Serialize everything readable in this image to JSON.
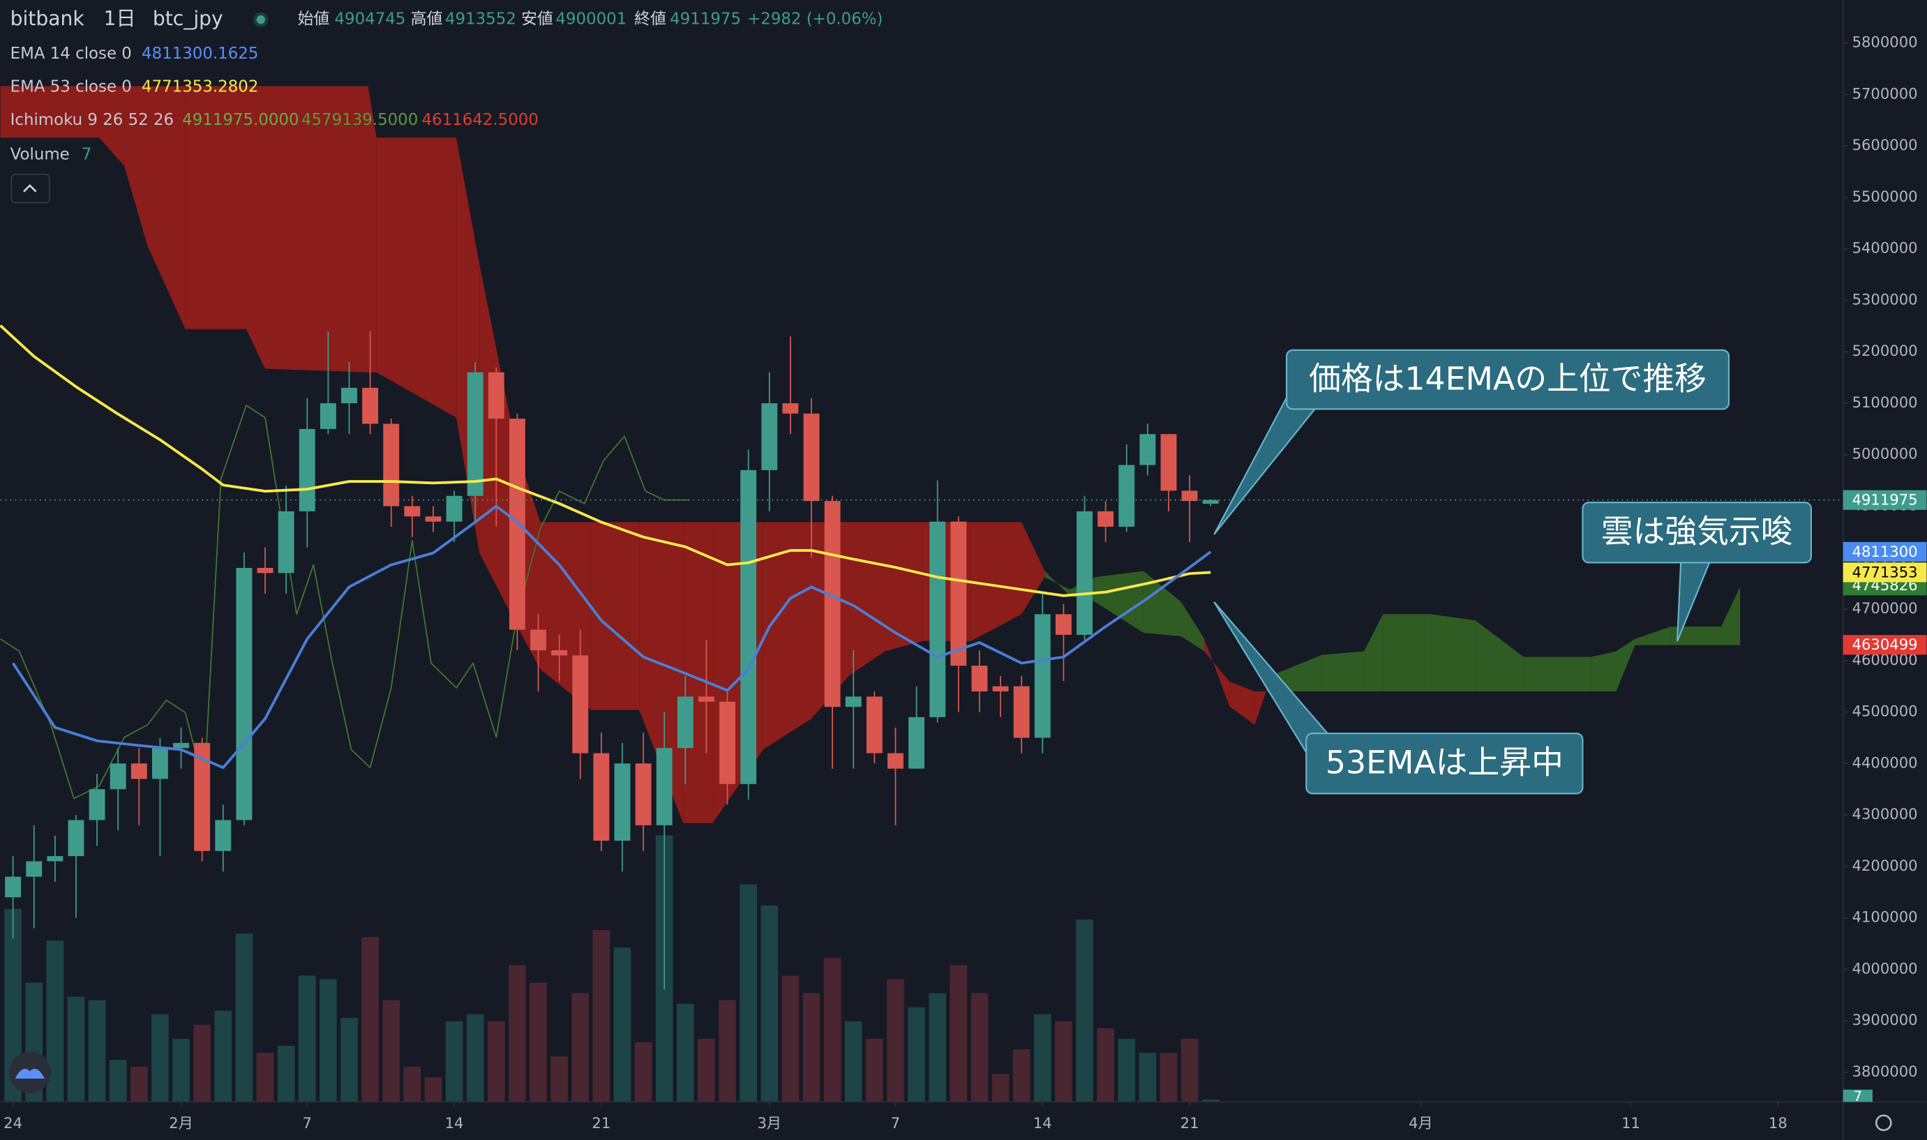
{
  "chart_data": {
    "type": "candlestick",
    "header": {
      "symbol": "bitbank",
      "interval": "1日",
      "pair": "btc_jpy",
      "ohlc": [
        {
          "label": "始値",
          "value": 4904745
        },
        {
          "label": "高値",
          "value": 4913552
        },
        {
          "label": "安値",
          "value": 4900001
        },
        {
          "label": "終値",
          "value": 4911975
        }
      ],
      "change": "+2982 (+0.06%)"
    },
    "legend": [
      {
        "label": "EMA 14 close 0",
        "values": [
          "4811300.1625"
        ],
        "colors": [
          "#5b8ff9"
        ]
      },
      {
        "label": "EMA 53 close 0",
        "values": [
          "4771353.2802"
        ],
        "colors": [
          "#f5e94a"
        ]
      },
      {
        "label": "Ichimoku 9 26 52 26",
        "values": [
          "4911975.0000",
          "4579139.5000",
          "4611642.5000"
        ],
        "colors": [
          "#6aaa4c",
          "#5c9a3c",
          "#e03c31"
        ]
      },
      {
        "label": "Volume",
        "values": [
          "7"
        ],
        "colors": [
          "#3f9c8c"
        ]
      }
    ],
    "xlim": [
      -0.6,
      87.1
    ],
    "xticks": [
      {
        "value": 0,
        "label": "24"
      },
      {
        "value": 8,
        "label": "2月"
      },
      {
        "value": 14,
        "label": "7"
      },
      {
        "value": 21,
        "label": "14"
      },
      {
        "value": 28,
        "label": "21"
      },
      {
        "value": 36,
        "label": "3月"
      },
      {
        "value": 42,
        "label": "7"
      },
      {
        "value": 49,
        "label": "14"
      },
      {
        "value": 56,
        "label": "21"
      },
      {
        "value": 67,
        "label": "4月"
      },
      {
        "value": 77,
        "label": "11"
      },
      {
        "value": 84,
        "label": "18"
      }
    ],
    "ylim": [
      3742400,
      5883500
    ],
    "yticks": [
      3800000,
      3900000,
      4000000,
      4100000,
      4200000,
      4300000,
      4400000,
      4500000,
      4600000,
      4700000,
      4800000,
      4900000,
      5000000,
      5100000,
      5200000,
      5300000,
      5400000,
      5500000,
      5600000,
      5700000,
      5800000
    ],
    "up_color": "#3f9c8c",
    "down_color": "#d9574f",
    "volume_up_color": "#1d4447",
    "volume_down_color": "#4a2630",
    "candles": {
      "x": [
        0,
        1,
        2,
        3,
        4,
        5,
        6,
        7,
        8,
        9,
        10,
        11,
        12,
        13,
        14,
        15,
        16,
        17,
        18,
        19,
        20,
        21,
        22,
        23,
        24,
        25,
        26,
        27,
        28,
        29,
        30,
        31,
        32,
        33,
        34,
        35,
        36,
        37,
        38,
        39,
        40,
        41,
        42,
        43,
        44,
        45,
        46,
        47,
        48,
        49,
        50,
        51,
        52,
        53,
        54,
        55,
        56,
        57
      ],
      "open": [
        4140000,
        4180000,
        4210000,
        4220000,
        4290000,
        4350000,
        4400000,
        4370000,
        4430000,
        4440000,
        4230000,
        4290000,
        4780000,
        4770000,
        4890000,
        5050000,
        5100000,
        5130000,
        5060000,
        4900000,
        4880000,
        4870000,
        4920000,
        5160000,
        5070000,
        4660000,
        4620000,
        4610000,
        4420000,
        4250000,
        4400000,
        4280000,
        4430000,
        4530000,
        4520000,
        4360000,
        4970000,
        5100000,
        5080000,
        4910000,
        4510000,
        4530000,
        4420000,
        4390000,
        4490000,
        4870000,
        4590000,
        4550000,
        4550000,
        4450000,
        4690000,
        4650000,
        4890000,
        4860000,
        4980000,
        5040000,
        4930000,
        4904745
      ],
      "high": [
        4220000,
        4280000,
        4260000,
        4300000,
        4380000,
        4430000,
        4430000,
        4450000,
        4470000,
        4450000,
        4320000,
        4810000,
        4820000,
        4940000,
        5110000,
        5240000,
        5180000,
        5240000,
        5070000,
        4920000,
        4900000,
        4930000,
        5180000,
        5170000,
        5080000,
        4690000,
        4650000,
        4660000,
        4460000,
        4440000,
        4460000,
        4500000,
        4570000,
        4640000,
        4540000,
        5010000,
        5160000,
        5230000,
        5110000,
        4920000,
        4620000,
        4540000,
        4470000,
        4550000,
        4950000,
        4880000,
        4620000,
        4570000,
        4570000,
        4730000,
        4710000,
        4920000,
        4910000,
        5020000,
        5060000,
        5040000,
        4960000,
        4913552
      ],
      "low": [
        4060000,
        4080000,
        4170000,
        4100000,
        4240000,
        4270000,
        4280000,
        4220000,
        4390000,
        4210000,
        4190000,
        4280000,
        4730000,
        4730000,
        4820000,
        5040000,
        5040000,
        5040000,
        4860000,
        4840000,
        4850000,
        4830000,
        4870000,
        4860000,
        4620000,
        4540000,
        4560000,
        4370000,
        4230000,
        4190000,
        4230000,
        3960000,
        4360000,
        4420000,
        4320000,
        4330000,
        4890000,
        5040000,
        4800000,
        4390000,
        4390000,
        4400000,
        4280000,
        4390000,
        4480000,
        4500000,
        4500000,
        4490000,
        4420000,
        4420000,
        4560000,
        4640000,
        4830000,
        4850000,
        4960000,
        4890000,
        4830000,
        4900001
      ],
      "close": [
        4180000,
        4210000,
        4220000,
        4290000,
        4350000,
        4400000,
        4370000,
        4430000,
        4440000,
        4230000,
        4290000,
        4780000,
        4770000,
        4890000,
        5050000,
        5100000,
        5130000,
        5060000,
        4900000,
        4880000,
        4870000,
        4920000,
        5160000,
        5070000,
        4660000,
        4620000,
        4610000,
        4420000,
        4250000,
        4400000,
        4280000,
        4430000,
        4530000,
        4520000,
        4360000,
        4970000,
        5100000,
        5080000,
        4910000,
        4510000,
        4530000,
        4420000,
        4390000,
        4490000,
        4870000,
        4590000,
        4540000,
        4540000,
        4450000,
        4690000,
        4650000,
        4890000,
        4860000,
        4980000,
        5040000,
        4930000,
        4910000,
        4911975
      ],
      "volume": [
        550,
        340,
        460,
        300,
        290,
        120,
        100,
        250,
        180,
        220,
        260,
        480,
        140,
        160,
        360,
        350,
        240,
        470,
        290,
        100,
        70,
        230,
        250,
        230,
        390,
        340,
        130,
        310,
        490,
        440,
        170,
        760,
        280,
        180,
        290,
        620,
        560,
        360,
        310,
        410,
        230,
        180,
        350,
        270,
        310,
        390,
        310,
        80,
        150,
        250,
        230,
        520,
        210,
        180,
        140,
        140,
        180,
        7
      ]
    },
    "ema14": {
      "color": "#4a7fd4",
      "x": [
        0,
        2,
        4,
        6,
        8,
        10,
        11,
        12,
        14,
        16,
        18,
        20,
        22,
        23,
        24,
        26,
        28,
        30,
        32,
        34,
        35,
        36,
        37,
        38,
        40,
        42,
        44,
        46,
        48,
        50,
        52,
        54,
        56,
        57
      ],
      "values": [
        4595000,
        4470000,
        4444000,
        4435000,
        4427000,
        4392000,
        4439000,
        4487000,
        4642000,
        4743000,
        4786000,
        4809000,
        4869000,
        4900000,
        4869000,
        4786000,
        4678000,
        4607000,
        4575000,
        4542000,
        4583000,
        4666000,
        4721000,
        4743000,
        4707000,
        4654000,
        4607000,
        4635000,
        4595000,
        4607000,
        4666000,
        4721000,
        4781000,
        4811300
      ]
    },
    "ema53": {
      "color": "#f5e94a",
      "x": [
        -0.6,
        1,
        3,
        5,
        7,
        9,
        10,
        12,
        14,
        16,
        18,
        20,
        22,
        23,
        24,
        26,
        28,
        30,
        32,
        34,
        35,
        36,
        37,
        38,
        40,
        42,
        44,
        46,
        48,
        50,
        52,
        54,
        56,
        57
      ],
      "values": [
        5251000,
        5191000,
        5132000,
        5079000,
        5029000,
        4972000,
        4941000,
        4929000,
        4933000,
        4948000,
        4948000,
        4945000,
        4948000,
        4953000,
        4936000,
        4905000,
        4869000,
        4840000,
        4821000,
        4786000,
        4790000,
        4802000,
        4814000,
        4814000,
        4797000,
        4781000,
        4762000,
        4750000,
        4738000,
        4726000,
        4733000,
        4750000,
        4769000,
        4771353
      ]
    },
    "lagging": {
      "color": "#3d7a2f",
      "x": [
        -0.6,
        0.3,
        1.8,
        2.9,
        4.1,
        5.3,
        6.4,
        7.3,
        8.2,
        9.1,
        9.9,
        11.1,
        12.0,
        13.5,
        14.3,
        15.2,
        16.1,
        17.0,
        18.0,
        19.0,
        19.9,
        21.1,
        21.9,
        23.0,
        24.0,
        25.1,
        26.0,
        27.2,
        28.1,
        29.1,
        30.1,
        31.0,
        32.2
      ],
      "values": [
        4642000,
        4618000,
        4475000,
        4332000,
        4356000,
        4451000,
        4475000,
        4523000,
        4499000,
        4356000,
        4953000,
        5096000,
        5072000,
        4690000,
        4786000,
        4595000,
        4427000,
        4392000,
        4547000,
        4833000,
        4595000,
        4547000,
        4595000,
        4451000,
        4690000,
        4857000,
        4929000,
        4905000,
        4988000,
        5036000,
        4929000,
        4912000,
        4912000
      ]
    },
    "cloud": {
      "bull_color": "#2e5c22",
      "bear_color": "#8b1d1a",
      "x": [
        -0.6,
        4.1,
        5.3,
        6.4,
        8.2,
        11.1,
        12.0,
        16.9,
        17.3,
        21.1,
        22.2,
        24.0,
        25.1,
        27.5,
        29.8,
        31.9,
        33.3,
        35.7,
        38.0,
        39.8,
        41.5,
        43.3,
        45.6,
        48.0,
        49.1,
        50.3,
        51.5,
        53.8,
        55.6,
        56.7,
        57.9,
        59.1,
        59.9,
        62.3,
        64.3,
        65.2,
        67.5,
        69.6,
        71.9,
        75.1,
        76.3,
        77.2,
        78.9,
        81.3,
        82.2
      ],
      "span_a": [
        5616000,
        5616000,
        5561000,
        5406000,
        5244000,
        5244000,
        5167000,
        5160000,
        5160000,
        5072000,
        4809000,
        4666000,
        4583000,
        4504000,
        4504000,
        4284000,
        4284000,
        4427000,
        4487000,
        4571000,
        4618000,
        4638000,
        4638000,
        4690000,
        4762000,
        4738000,
        4762000,
        4774000,
        4714000,
        4642000,
        4511000,
        4475000,
        4571000,
        4611000,
        4618000,
        4690000,
        4690000,
        4678000,
        4607000,
        4607000,
        4618000,
        4642000,
        4666000,
        4666000,
        4743000
      ],
      "span_b": [
        5716000,
        5716000,
        5716000,
        5716000,
        5716000,
        5716000,
        5716000,
        5716000,
        5616000,
        5616000,
        5370000,
        5003000,
        4869000,
        4869000,
        4869000,
        4869000,
        4869000,
        4869000,
        4869000,
        4869000,
        4869000,
        4869000,
        4869000,
        4869000,
        4774000,
        4726000,
        4714000,
        4654000,
        4647000,
        4618000,
        4559000,
        4540000,
        4540000,
        4540000,
        4540000,
        4540000,
        4540000,
        4540000,
        4540000,
        4540000,
        4540000,
        4630000,
        4630000,
        4630000,
        4630000
      ]
    },
    "price_tags": [
      {
        "value": 4911975,
        "color": "#3f9c8c",
        "text_color": "#ffffff"
      },
      {
        "value": 4811300,
        "color": "#4a8cf0",
        "text_color": "#ffffff"
      },
      {
        "value": 4745826,
        "color": "#2e7d32",
        "text_color": "#ffffff"
      },
      {
        "value": 4771353,
        "color": "#f5e94a",
        "text_color": "#000000"
      },
      {
        "value": 4630499,
        "color": "#e53935",
        "text_color": "#ffffff"
      }
    ],
    "annotations": [
      {
        "text": "価格は14EMAの上位で推移"
      },
      {
        "text": "雲は強気示唆"
      },
      {
        "text": "53EMAは上昇中"
      }
    ]
  }
}
